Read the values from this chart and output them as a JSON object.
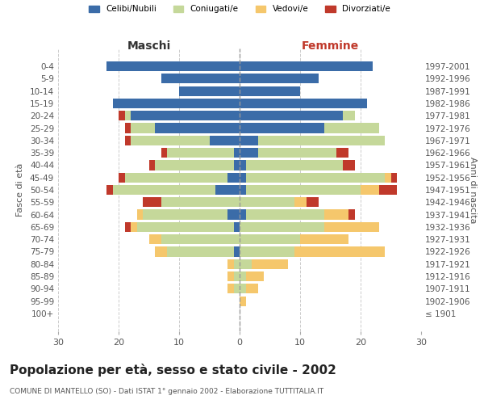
{
  "age_groups": [
    "100+",
    "95-99",
    "90-94",
    "85-89",
    "80-84",
    "75-79",
    "70-74",
    "65-69",
    "60-64",
    "55-59",
    "50-54",
    "45-49",
    "40-44",
    "35-39",
    "30-34",
    "25-29",
    "20-24",
    "15-19",
    "10-14",
    "5-9",
    "0-4"
  ],
  "birth_years": [
    "≤ 1901",
    "1902-1906",
    "1907-1911",
    "1912-1916",
    "1917-1921",
    "1922-1926",
    "1927-1931",
    "1932-1936",
    "1937-1941",
    "1942-1946",
    "1947-1951",
    "1952-1956",
    "1957-1961",
    "1962-1966",
    "1967-1971",
    "1972-1976",
    "1977-1981",
    "1982-1986",
    "1987-1991",
    "1992-1996",
    "1997-2001"
  ],
  "males": {
    "celibe": [
      0,
      0,
      0,
      0,
      0,
      1,
      0,
      1,
      2,
      0,
      4,
      2,
      1,
      1,
      5,
      14,
      18,
      21,
      10,
      13,
      22
    ],
    "coniugato": [
      0,
      0,
      1,
      1,
      1,
      11,
      13,
      16,
      14,
      13,
      17,
      17,
      13,
      11,
      13,
      4,
      1,
      0,
      0,
      0,
      0
    ],
    "vedovo": [
      0,
      0,
      1,
      1,
      1,
      2,
      2,
      1,
      1,
      0,
      0,
      0,
      0,
      0,
      0,
      0,
      0,
      0,
      0,
      0,
      0
    ],
    "divorziato": [
      0,
      0,
      0,
      0,
      0,
      0,
      0,
      1,
      0,
      3,
      1,
      1,
      1,
      1,
      1,
      1,
      1,
      0,
      0,
      0,
      0
    ]
  },
  "females": {
    "nubile": [
      0,
      0,
      0,
      0,
      0,
      0,
      0,
      0,
      1,
      0,
      1,
      1,
      1,
      3,
      3,
      14,
      17,
      21,
      10,
      13,
      22
    ],
    "coniugata": [
      0,
      0,
      1,
      1,
      2,
      9,
      10,
      14,
      13,
      9,
      19,
      23,
      16,
      13,
      21,
      9,
      2,
      0,
      0,
      0,
      0
    ],
    "vedova": [
      0,
      1,
      2,
      3,
      6,
      15,
      8,
      9,
      4,
      2,
      3,
      1,
      0,
      0,
      0,
      0,
      0,
      0,
      0,
      0,
      0
    ],
    "divorziata": [
      0,
      0,
      0,
      0,
      0,
      0,
      0,
      0,
      1,
      2,
      3,
      1,
      2,
      2,
      0,
      0,
      0,
      0,
      0,
      0,
      0
    ]
  },
  "colors": {
    "celibe": "#3b6ca8",
    "coniugato": "#c5d89a",
    "vedovo": "#f5c76c",
    "divorziato": "#c0392b"
  },
  "legend_labels": [
    "Celibi/Nubili",
    "Coniugati/e",
    "Vedovi/e",
    "Divorziati/e"
  ],
  "legend_colors": [
    "#3b6ca8",
    "#c5d89a",
    "#f5c76c",
    "#c0392b"
  ],
  "title": "Popolazione per età, sesso e stato civile - 2002",
  "subtitle": "COMUNE DI MANTELLO (SO) - Dati ISTAT 1° gennaio 2002 - Elaborazione TUTTITALIA.IT",
  "xlabel_left": "Maschi",
  "xlabel_right": "Femmine",
  "ylabel_left": "Fasce di età",
  "ylabel_right": "Anni di nascita",
  "xlim": 30,
  "background_color": "#ffffff",
  "grid_color": "#cccccc",
  "bar_height": 0.8
}
